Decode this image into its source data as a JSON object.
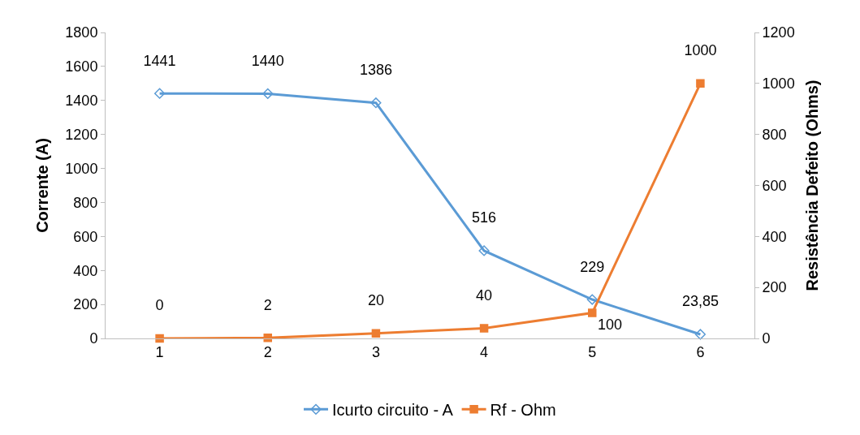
{
  "chart_data": {
    "type": "line",
    "categories": [
      "1",
      "2",
      "3",
      "4",
      "5",
      "6"
    ],
    "series": [
      {
        "name": "Icurto circuito - A",
        "color": "#5b9bd5",
        "marker": "diamond",
        "values": [
          1441,
          1440,
          1386,
          516,
          229,
          23.85
        ],
        "value_labels": [
          "1441",
          "1440",
          "1386",
          "516",
          "229",
          "23,85"
        ]
      },
      {
        "name": "Rf - Ohm",
        "color": "#ed7d31",
        "marker": "square",
        "axis": "y2",
        "values": [
          0,
          2,
          20,
          40,
          100,
          1000
        ],
        "value_labels": [
          "0",
          "2",
          "20",
          "40",
          "100",
          "1000"
        ]
      }
    ],
    "ylabel": "Corrente (A)",
    "y2label": "Resistência Defeito (Ohms)",
    "ylim": [
      0,
      1800
    ],
    "yticks": [
      0,
      200,
      400,
      600,
      800,
      1000,
      1200,
      1400,
      1600,
      1800
    ],
    "y2lim": [
      0,
      1200
    ],
    "y2ticks": [
      0,
      200,
      400,
      600,
      800,
      1000,
      1200
    ],
    "legend": "bottom"
  }
}
